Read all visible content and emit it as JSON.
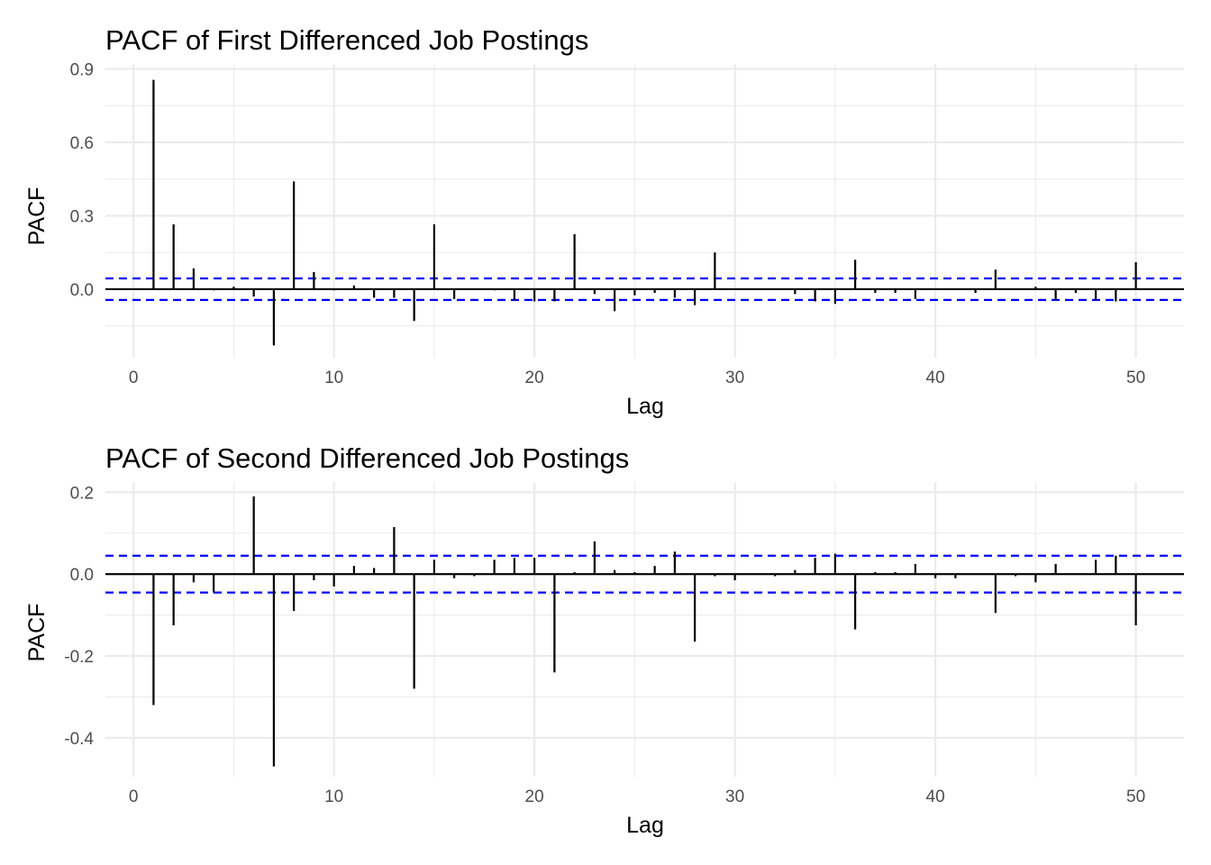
{
  "chart_data": [
    {
      "type": "bar",
      "title": "PACF of First Differenced Job Postings",
      "xlabel": "Lag",
      "ylabel": "PACF",
      "xlim": [
        -1.4,
        52.4
      ],
      "ylim": [
        -0.28,
        0.92
      ],
      "x_ticks": [
        0,
        10,
        20,
        30,
        40,
        50
      ],
      "y_ticks": [
        0.0,
        0.3,
        0.6,
        0.9
      ],
      "y_tick_labels": [
        "0.0",
        "0.3",
        "0.6",
        "0.9"
      ],
      "confidence_bound": 0.044,
      "ci_color": "#0000ff",
      "lags": [
        1,
        2,
        3,
        4,
        5,
        6,
        7,
        8,
        9,
        10,
        11,
        12,
        13,
        14,
        15,
        16,
        17,
        18,
        19,
        20,
        21,
        22,
        23,
        24,
        25,
        26,
        27,
        28,
        29,
        30,
        31,
        32,
        33,
        34,
        35,
        36,
        37,
        38,
        39,
        40,
        41,
        42,
        43,
        44,
        45,
        46,
        47,
        48,
        49,
        50
      ],
      "values": [
        0.855,
        0.265,
        0.085,
        -0.005,
        0.01,
        -0.03,
        -0.23,
        0.44,
        0.07,
        -0.005,
        0.015,
        -0.035,
        -0.035,
        -0.13,
        0.265,
        -0.04,
        0.0,
        -0.005,
        -0.045,
        -0.05,
        -0.05,
        0.225,
        -0.02,
        -0.09,
        -0.025,
        -0.015,
        -0.035,
        -0.065,
        0.15,
        0.0,
        0.0,
        0.0,
        -0.02,
        -0.05,
        -0.06,
        0.12,
        -0.015,
        -0.015,
        -0.04,
        0.0,
        0.0,
        -0.015,
        0.08,
        0.0,
        0.01,
        -0.045,
        -0.015,
        -0.045,
        -0.05,
        0.11
      ]
    },
    {
      "type": "bar",
      "title": "PACF of Second Differenced Job Postings",
      "xlabel": "Lag",
      "ylabel": "PACF",
      "xlim": [
        -1.4,
        52.4
      ],
      "ylim": [
        -0.495,
        0.225
      ],
      "x_ticks": [
        0,
        10,
        20,
        30,
        40,
        50
      ],
      "y_ticks": [
        -0.4,
        -0.2,
        0.0,
        0.2
      ],
      "y_tick_labels": [
        "-0.4",
        "-0.2",
        "0.0",
        "0.2"
      ],
      "confidence_bound": 0.045,
      "ci_color": "#0000ff",
      "lags": [
        1,
        2,
        3,
        4,
        5,
        6,
        7,
        8,
        9,
        10,
        11,
        12,
        13,
        14,
        15,
        16,
        17,
        18,
        19,
        20,
        21,
        22,
        23,
        24,
        25,
        26,
        27,
        28,
        29,
        30,
        31,
        32,
        33,
        34,
        35,
        36,
        37,
        38,
        39,
        40,
        41,
        42,
        43,
        44,
        45,
        46,
        47,
        48,
        49,
        50
      ],
      "values": [
        -0.32,
        -0.125,
        -0.02,
        -0.045,
        0.0,
        0.19,
        -0.47,
        -0.09,
        -0.015,
        -0.03,
        0.02,
        0.015,
        0.115,
        -0.28,
        0.035,
        -0.01,
        -0.005,
        0.035,
        0.04,
        0.04,
        -0.24,
        0.005,
        0.08,
        0.01,
        0.005,
        0.02,
        0.055,
        -0.165,
        -0.005,
        -0.015,
        0.0,
        -0.005,
        0.01,
        0.04,
        0.05,
        -0.135,
        0.005,
        0.005,
        0.025,
        -0.01,
        -0.01,
        0.0,
        -0.095,
        -0.005,
        -0.02,
        0.025,
        0.0,
        0.035,
        0.045,
        -0.125
      ]
    }
  ]
}
